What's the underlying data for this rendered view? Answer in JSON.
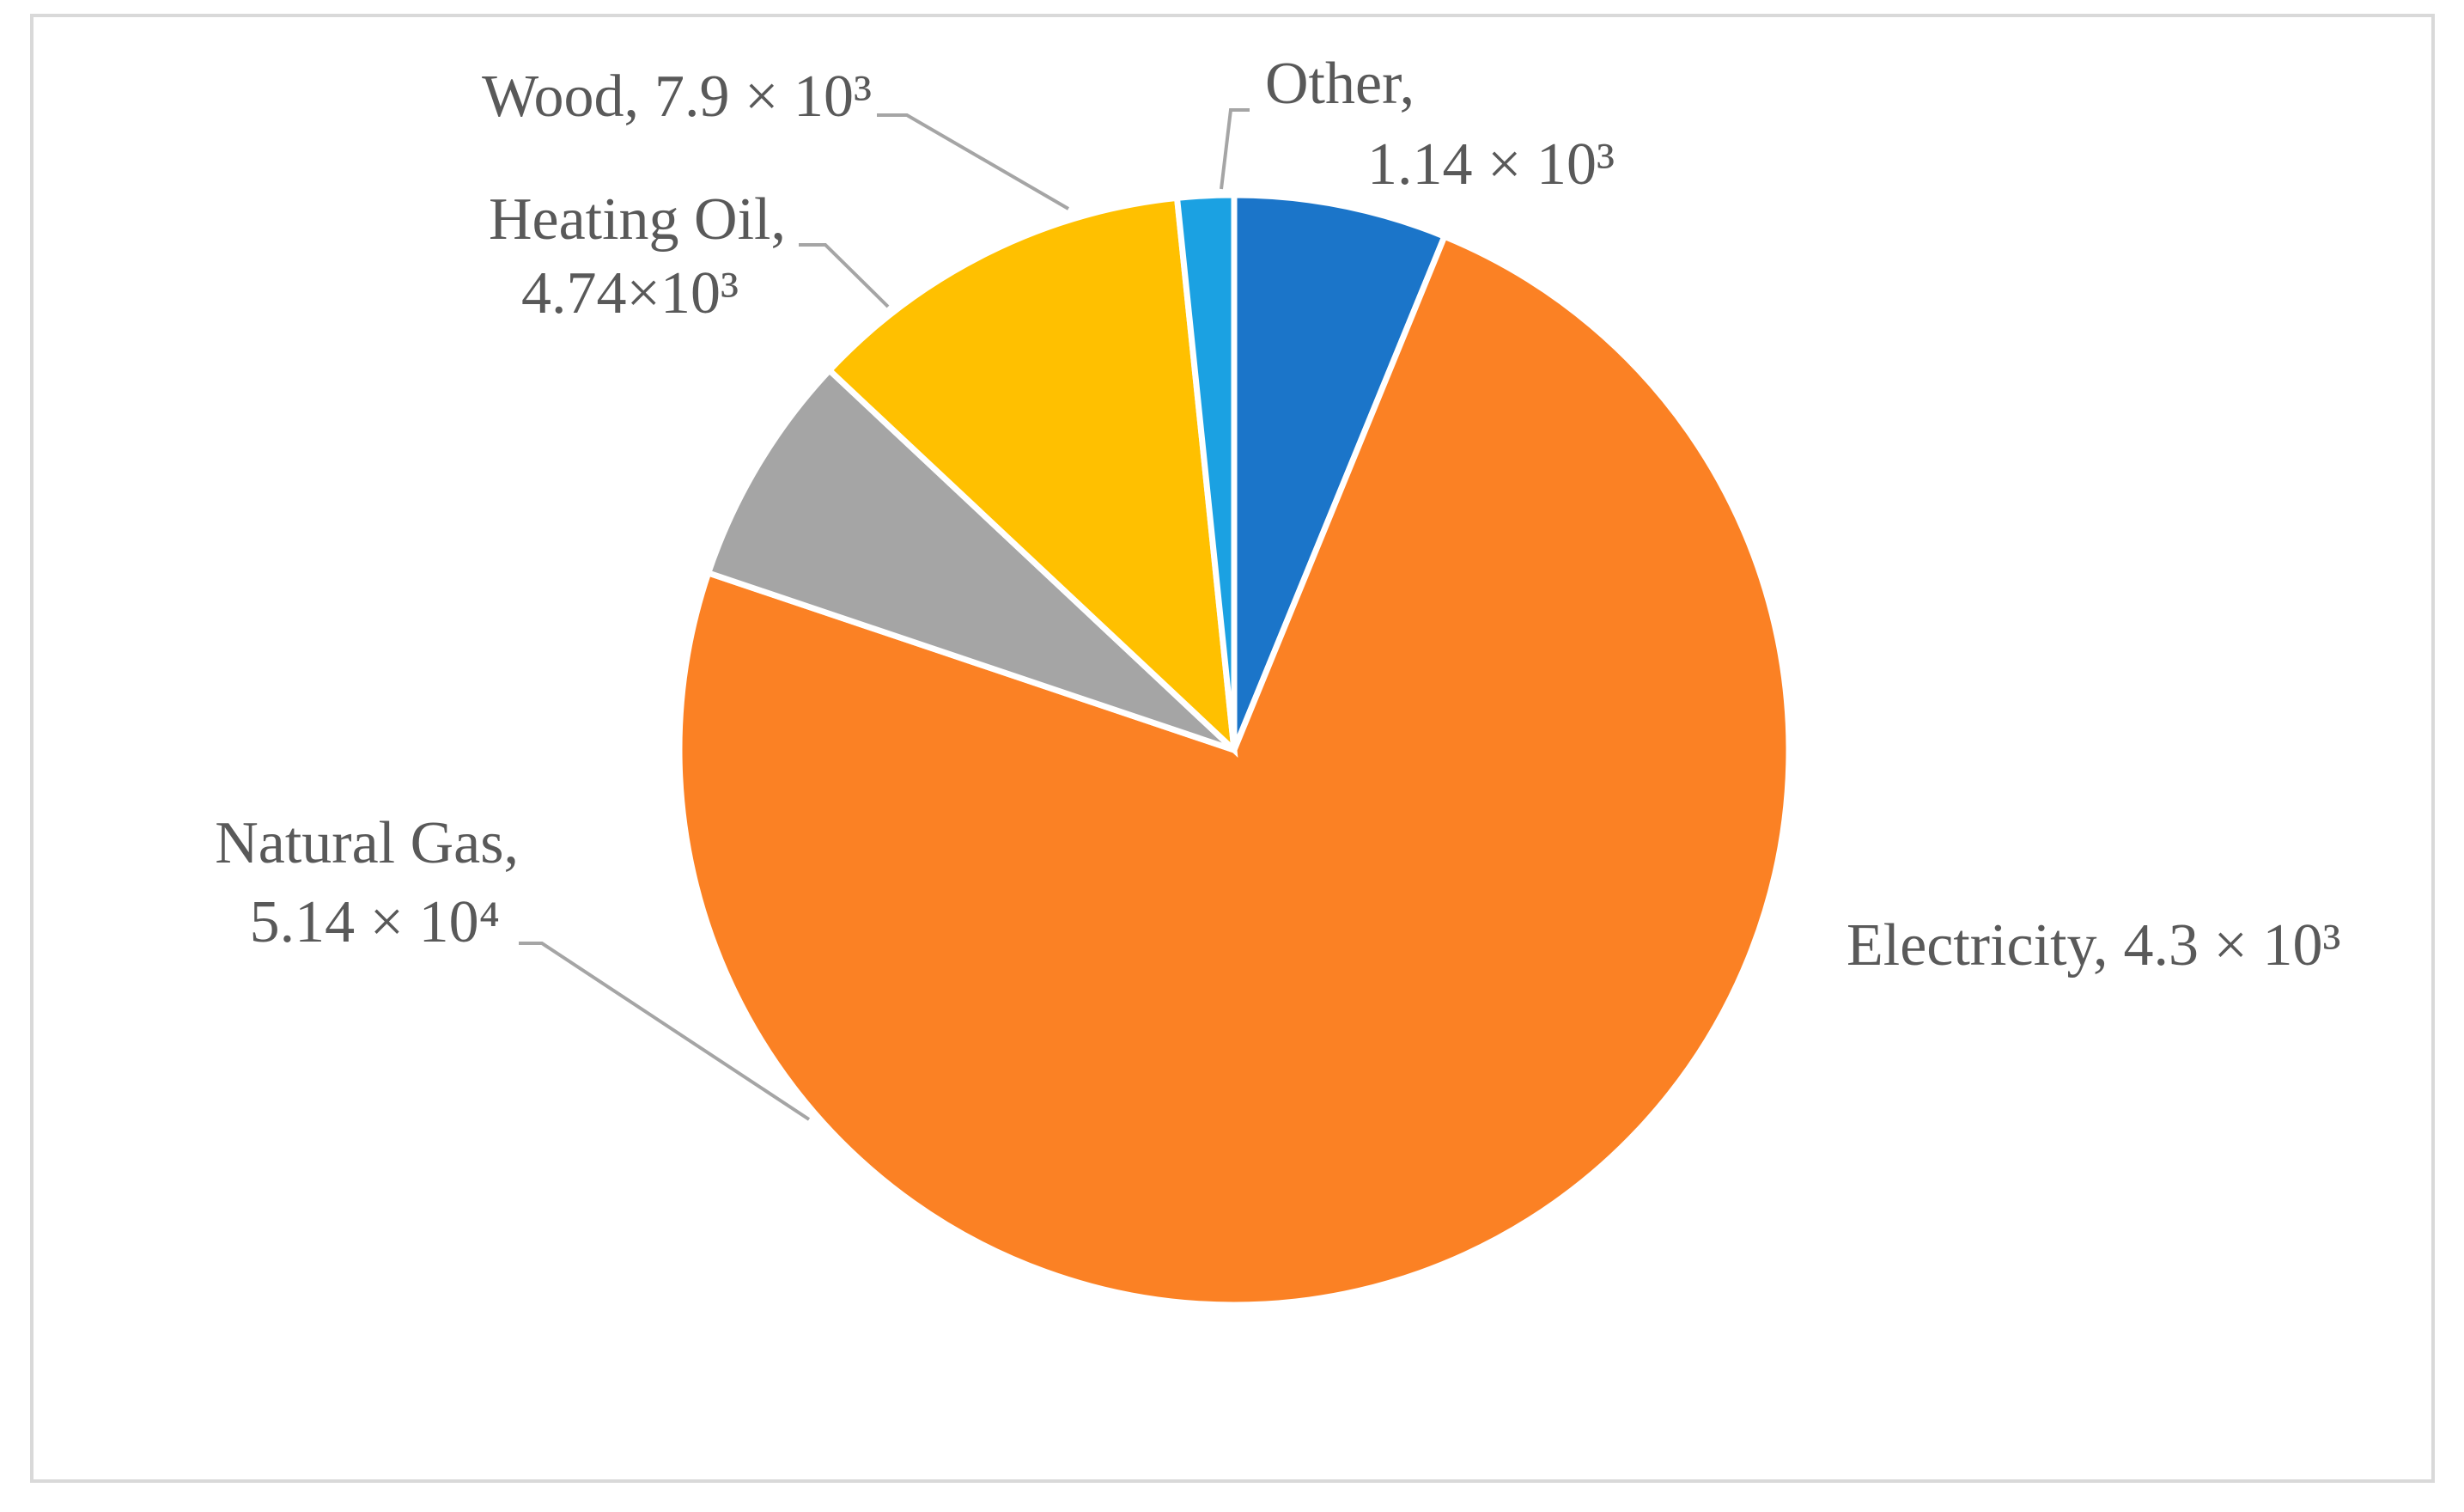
{
  "chart_data": {
    "type": "pie",
    "categories": [
      "Electricity,",
      "Natural Gas,",
      "Heating Oil,",
      "Wood,",
      "Other,"
    ],
    "values": [
      4300,
      51400,
      4740,
      7900,
      1140
    ],
    "value_labels": [
      "4.3 × 10³",
      "5.14 × 10⁴",
      "4.74×10³",
      "7.9 × 10³",
      "1.14 × 10³"
    ],
    "colors": [
      "#1b75c9",
      "#fb8124",
      "#a5a5a5",
      "#ffc000",
      "#1ba1e2"
    ]
  }
}
